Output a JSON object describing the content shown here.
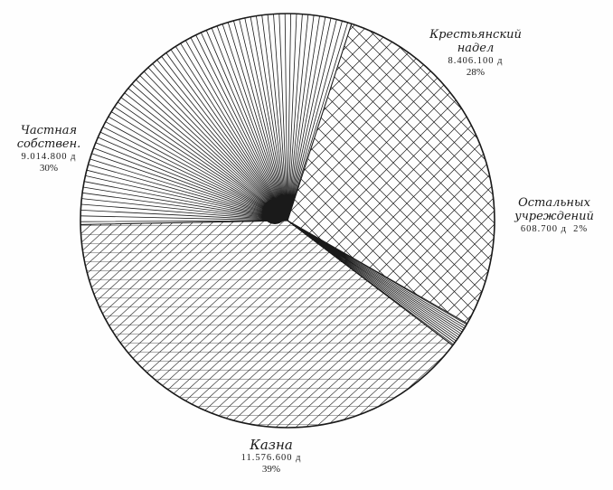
{
  "chart_data": {
    "type": "pie",
    "title": "",
    "start_angle_deg": -72,
    "slices": [
      {
        "label_lines": [
          "Крестьянский",
          "надел"
        ],
        "value": "8.406.100 д",
        "percent": "28%",
        "pct": 28,
        "pattern": "crosshatch"
      },
      {
        "label_lines": [
          "Остальных",
          "учреждений"
        ],
        "value": "608.700 д",
        "percent": "2%",
        "pct": 2,
        "pattern": "radial-fine"
      },
      {
        "label_lines": [
          "Казна"
        ],
        "value": "11.576.600 д",
        "percent": "39%",
        "pct": 39,
        "pattern": "diagonal-double"
      },
      {
        "label_lines": [
          "Частная",
          "собствен."
        ],
        "value": "9.014.800 д",
        "percent": "30%",
        "pct": 30,
        "pattern": "radial"
      }
    ],
    "colors": {
      "ink": "#1a1a1a",
      "paper": "#fefefe"
    }
  }
}
